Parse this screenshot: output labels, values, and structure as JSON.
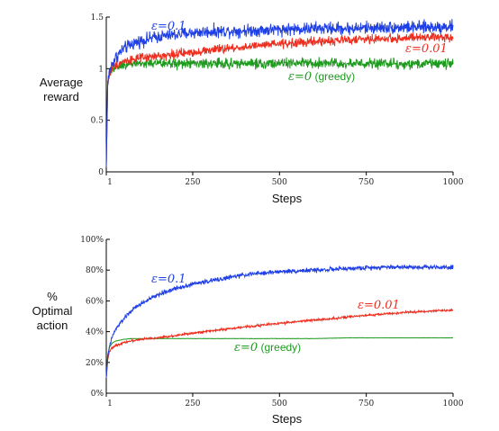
{
  "chart_data": [
    {
      "type": "line",
      "xlabel": "Steps",
      "ylabel_lines": [
        "Average",
        "reward"
      ],
      "xlim": [
        1,
        1000
      ],
      "ylim": [
        0,
        1.5
      ],
      "xticks": [
        1,
        250,
        500,
        750,
        1000
      ],
      "xtick_labels": [
        "1",
        "250",
        "500",
        "750",
        "1000"
      ],
      "yticks": [
        0,
        0.5,
        1,
        1.5
      ],
      "ytick_labels": [
        "0",
        "0.5",
        "1",
        "1.5"
      ],
      "grid": false,
      "series": [
        {
          "name": "ε=0.1",
          "label_parts": [
            "ε",
            "=0.1",
            ""
          ],
          "color": "#1f3fe6",
          "noise": 0.03,
          "x": [
            1,
            5,
            10,
            20,
            30,
            50,
            75,
            100,
            150,
            200,
            250,
            300,
            400,
            500,
            600,
            700,
            800,
            900,
            1000
          ],
          "y": [
            0.05,
            0.85,
            0.97,
            1.06,
            1.12,
            1.19,
            1.24,
            1.27,
            1.31,
            1.33,
            1.35,
            1.36,
            1.37,
            1.38,
            1.39,
            1.39,
            1.4,
            1.4,
            1.41
          ]
        },
        {
          "name": "ε=0.01",
          "label_parts": [
            "ε",
            "=0.01",
            ""
          ],
          "color": "#ee2e1f",
          "noise": 0.022,
          "x": [
            1,
            5,
            10,
            20,
            30,
            50,
            75,
            100,
            150,
            200,
            250,
            300,
            400,
            500,
            600,
            700,
            800,
            900,
            1000
          ],
          "y": [
            0.05,
            0.85,
            0.95,
            1.01,
            1.04,
            1.07,
            1.09,
            1.1,
            1.12,
            1.14,
            1.16,
            1.18,
            1.21,
            1.24,
            1.26,
            1.28,
            1.29,
            1.3,
            1.31
          ]
        },
        {
          "name": "ε=0 (greedy)",
          "label_parts": [
            "ε",
            "=0",
            " (greedy)"
          ],
          "color": "#1e9a1e",
          "noise": 0.025,
          "x": [
            1,
            5,
            10,
            20,
            30,
            50,
            75,
            100,
            200,
            300,
            400,
            500,
            600,
            700,
            800,
            900,
            1000
          ],
          "y": [
            0.05,
            0.86,
            0.95,
            1.0,
            1.02,
            1.04,
            1.05,
            1.05,
            1.05,
            1.05,
            1.05,
            1.05,
            1.05,
            1.05,
            1.05,
            1.05,
            1.05
          ]
        }
      ]
    },
    {
      "type": "line",
      "xlabel": "Steps",
      "ylabel_lines": [
        "%",
        "Optimal",
        "action"
      ],
      "xlim": [
        1,
        1000
      ],
      "ylim": [
        0,
        100
      ],
      "xticks": [
        1,
        250,
        500,
        750,
        1000
      ],
      "xtick_labels": [
        "1",
        "250",
        "500",
        "750",
        "1000"
      ],
      "yticks": [
        0,
        20,
        40,
        60,
        80,
        100
      ],
      "ytick_labels": [
        "0%",
        "20%",
        "40%",
        "60%",
        "80%",
        "100%"
      ],
      "grid": false,
      "series": [
        {
          "name": "ε=0.1",
          "label_parts": [
            "ε",
            "=0.1",
            ""
          ],
          "color": "#1f3fe6",
          "noise": 0.7,
          "x": [
            1,
            5,
            10,
            20,
            30,
            50,
            75,
            100,
            150,
            200,
            250,
            300,
            400,
            500,
            600,
            700,
            800,
            900,
            1000
          ],
          "y": [
            10,
            22,
            30,
            38,
            42,
            48,
            54,
            58,
            64,
            68,
            71,
            73,
            77,
            79,
            80,
            81,
            82,
            82,
            82
          ]
        },
        {
          "name": "ε=0.01",
          "label_parts": [
            "ε",
            "=0.01",
            ""
          ],
          "color": "#ee2e1f",
          "noise": 0.35,
          "x": [
            1,
            5,
            10,
            20,
            30,
            50,
            75,
            100,
            150,
            200,
            250,
            300,
            400,
            500,
            600,
            700,
            800,
            900,
            1000
          ],
          "y": [
            10,
            22,
            27,
            30,
            31,
            33,
            34,
            35,
            36,
            37.5,
            39,
            40.5,
            43,
            45.5,
            47.5,
            49.5,
            51.5,
            53,
            54
          ]
        },
        {
          "name": "ε=0 (greedy)",
          "label_parts": [
            "ε",
            "=0",
            " (greedy)"
          ],
          "color": "#1e9a1e",
          "noise": 0.05,
          "x": [
            1,
            5,
            10,
            20,
            30,
            50,
            75,
            100,
            200,
            300,
            400,
            500,
            600,
            700,
            800,
            900,
            1000
          ],
          "y": [
            10,
            25,
            30,
            33,
            34,
            35,
            35.5,
            35.5,
            35.5,
            35.5,
            35.5,
            35.5,
            35.5,
            36,
            36,
            36,
            36
          ]
        }
      ]
    }
  ]
}
